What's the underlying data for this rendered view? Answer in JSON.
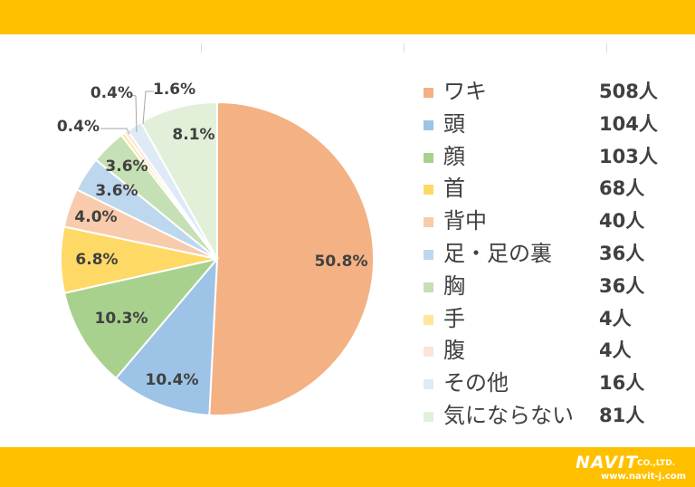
{
  "chart_data": {
    "type": "pie",
    "start_angle_deg": 0,
    "direction": "clockwise",
    "slices": [
      {
        "label": "ワキ",
        "count": "508人",
        "percent_label": "50.8%",
        "value": 50.8,
        "color": "#f4b183"
      },
      {
        "label": "頭",
        "count": "104人",
        "percent_label": "10.4%",
        "value": 10.4,
        "color": "#9dc3e6"
      },
      {
        "label": "顔",
        "count": "103人",
        "percent_label": "10.3%",
        "value": 10.3,
        "color": "#a9d18e"
      },
      {
        "label": "首",
        "count": "68人",
        "percent_label": "6.8%",
        "value": 6.8,
        "color": "#ffd966"
      },
      {
        "label": "背中",
        "count": "40人",
        "percent_label": "4.0%",
        "value": 4.0,
        "color": "#f8cbad"
      },
      {
        "label": "足・足の裏",
        "count": "36人",
        "percent_label": "3.6%",
        "value": 3.6,
        "color": "#bdd7ee"
      },
      {
        "label": "胸",
        "count": "36人",
        "percent_label": "3.6%",
        "value": 3.6,
        "color": "#c5e0b4"
      },
      {
        "label": "手",
        "count": "4人",
        "percent_label": "0.4%",
        "value": 0.4,
        "color": "#ffe699"
      },
      {
        "label": "腹",
        "count": "4人",
        "percent_label": "0.4%",
        "value": 0.4,
        "color": "#fbe5d6"
      },
      {
        "label": "その他",
        "count": "16人",
        "percent_label": "1.6%",
        "value": 1.6,
        "color": "#deebf7"
      },
      {
        "label": "気にならない",
        "count": "81人",
        "percent_label": "8.1%",
        "value": 8.1,
        "color": "#e2f0d9"
      }
    ],
    "legend_position": "right"
  },
  "logo": {
    "brand": "NAVIT",
    "suffix": "CO.,LTD.",
    "url": "www.navit-j.com"
  },
  "colors": {
    "band": "#ffc000",
    "text": "#404040"
  }
}
